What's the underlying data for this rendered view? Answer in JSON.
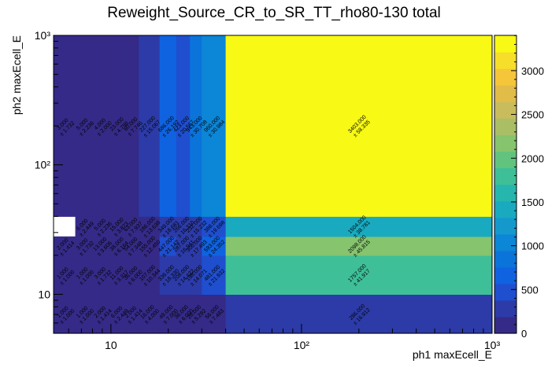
{
  "chart_data": {
    "type": "heatmap",
    "title": "Reweight_Source_CR_to_SR_TT_rho80-130 total",
    "xlabel": "ph1 maxEcell_E",
    "ylabel": "ph2 maxEcell_E",
    "xscale": "log",
    "yscale": "log",
    "xlim": [
      5,
      1000
    ],
    "ylim": [
      5,
      1000
    ],
    "x_tick_labels": [
      "10",
      "10²",
      "10³"
    ],
    "y_tick_labels": [
      "10",
      "10²",
      "10³"
    ],
    "x_edges": [
      5,
      6.5,
      8,
      10,
      12,
      14,
      18,
      22,
      26,
      30,
      40,
      1000
    ],
    "y_edges": [
      5,
      10,
      20,
      28,
      40,
      1000
    ],
    "z_range": [
      0,
      3403
    ],
    "colorbar_ticks": [
      "0",
      "500",
      "1000",
      "1500",
      "2000",
      "2500",
      "3000"
    ],
    "colorbar_tick_values": [
      0,
      500,
      1000,
      1500,
      2000,
      2500,
      3000
    ],
    "palette": [
      "#352a87",
      "#2c3ba8",
      "#1f4fcf",
      "#0f63e0",
      "#0a74db",
      "#0c86d6",
      "#1599cd",
      "#19aac0",
      "#27b6ad",
      "#3fbf97",
      "#62c37f",
      "#86c46e",
      "#aabf65",
      "#c9bc5d",
      "#e2bc48",
      "#f6c63a",
      "#f7de2a",
      "#f8f914"
    ],
    "cells": [
      {
        "x": 0,
        "y": 0,
        "value": 1,
        "error": 1
      },
      {
        "x": 1,
        "y": 0,
        "value": 1,
        "error": 1
      },
      {
        "x": 2,
        "y": 0,
        "value": 2,
        "error": 1.414
      },
      {
        "x": 3,
        "y": 0,
        "value": 6,
        "error": 2.449
      },
      {
        "x": 4,
        "y": 0,
        "value": 2,
        "error": 1.414
      },
      {
        "x": 5,
        "y": 0,
        "value": 16,
        "error": 4
      },
      {
        "x": 6,
        "y": 0,
        "value": 49,
        "error": 7
      },
      {
        "x": 7,
        "y": 0,
        "value": 36,
        "error": 6
      },
      {
        "x": 8,
        "y": 0,
        "value": 28,
        "error": 5.292
      },
      {
        "x": 9,
        "y": 0,
        "value": 56,
        "error": 7.483
      },
      {
        "x": 10,
        "y": 0,
        "value": 286,
        "error": 16.912
      },
      {
        "x": 0,
        "y": 1,
        "value": 1,
        "error": 1
      },
      {
        "x": 1,
        "y": 1,
        "value": 1,
        "error": 1
      },
      {
        "x": 2,
        "y": 1,
        "value": 3,
        "error": 1.732
      },
      {
        "x": 3,
        "y": 1,
        "value": 11,
        "error": 3.317
      },
      {
        "x": 4,
        "y": 1,
        "value": 36,
        "error": 6
      },
      {
        "x": 5,
        "y": 1,
        "value": 107,
        "error": 10.344
      },
      {
        "x": 6,
        "y": 1,
        "value": 336,
        "error": 18.33
      },
      {
        "x": 7,
        "y": 1,
        "value": 208,
        "error": 14.422
      },
      {
        "x": 8,
        "y": 1,
        "value": 198,
        "error": 14.071
      },
      {
        "x": 9,
        "y": 1,
        "value": 481,
        "error": 21.932
      },
      {
        "x": 10,
        "y": 1,
        "value": 1757,
        "error": 41.917
      },
      {
        "x": 0,
        "y": 2,
        "value": 2,
        "error": 1.414
      },
      {
        "x": 1,
        "y": 2,
        "value": 3,
        "error": 1.732
      },
      {
        "x": 2,
        "y": 2,
        "value": 13,
        "error": 3.606
      },
      {
        "x": 3,
        "y": 2,
        "value": 38,
        "error": 6.164
      },
      {
        "x": 4,
        "y": 2,
        "value": 54,
        "error": 7.348
      },
      {
        "x": 5,
        "y": 2,
        "value": 155,
        "error": 12.45
      },
      {
        "x": 6,
        "y": 2,
        "value": 447,
        "error": 21.142
      },
      {
        "x": 7,
        "y": 2,
        "value": 287,
        "error": 16.941
      },
      {
        "x": 8,
        "y": 2,
        "value": 306,
        "error": 17.493
      },
      {
        "x": 9,
        "y": 2,
        "value": 593,
        "error": 24.352
      },
      {
        "x": 10,
        "y": 2,
        "value": 2098,
        "error": 45.815
      },
      {
        "x": 1,
        "y": 3,
        "value": 6,
        "error": 2.449
      },
      {
        "x": 2,
        "y": 3,
        "value": 5,
        "error": 2.236
      },
      {
        "x": 3,
        "y": 3,
        "value": 15,
        "error": 3.873
      },
      {
        "x": 4,
        "y": 3,
        "value": 63,
        "error": 7.937
      },
      {
        "x": 5,
        "y": 3,
        "value": 186,
        "error": 13.638
      },
      {
        "x": 6,
        "y": 3,
        "value": 349,
        "error": 18.681
      },
      {
        "x": 7,
        "y": 3,
        "value": 266,
        "error": 16.31
      },
      {
        "x": 8,
        "y": 3,
        "value": 232,
        "error": 15.232
      },
      {
        "x": 9,
        "y": 3,
        "value": 388,
        "error": 19.698
      },
      {
        "x": 10,
        "y": 3,
        "value": 1504,
        "error": 38.781
      },
      {
        "x": 0,
        "y": 4,
        "value": 3,
        "error": 1.732
      },
      {
        "x": 1,
        "y": 4,
        "value": 5,
        "error": 2.236
      },
      {
        "x": 2,
        "y": 4,
        "value": 4,
        "error": 2
      },
      {
        "x": 3,
        "y": 4,
        "value": 23,
        "error": 4.796
      },
      {
        "x": 4,
        "y": 4,
        "value": 60,
        "error": 7.746
      },
      {
        "x": 5,
        "y": 4,
        "value": 227,
        "error": 15.067
      },
      {
        "x": 6,
        "y": 4,
        "value": 686,
        "error": 26.192
      },
      {
        "x": 7,
        "y": 4,
        "value": 423,
        "error": 20.567
      },
      {
        "x": 8,
        "y": 4,
        "value": 943,
        "error": 30.708
      },
      {
        "x": 9,
        "y": 4,
        "value": 960,
        "error": 30.984
      },
      {
        "x": 10,
        "y": 4,
        "value": 3403,
        "error": 58.335
      }
    ]
  }
}
